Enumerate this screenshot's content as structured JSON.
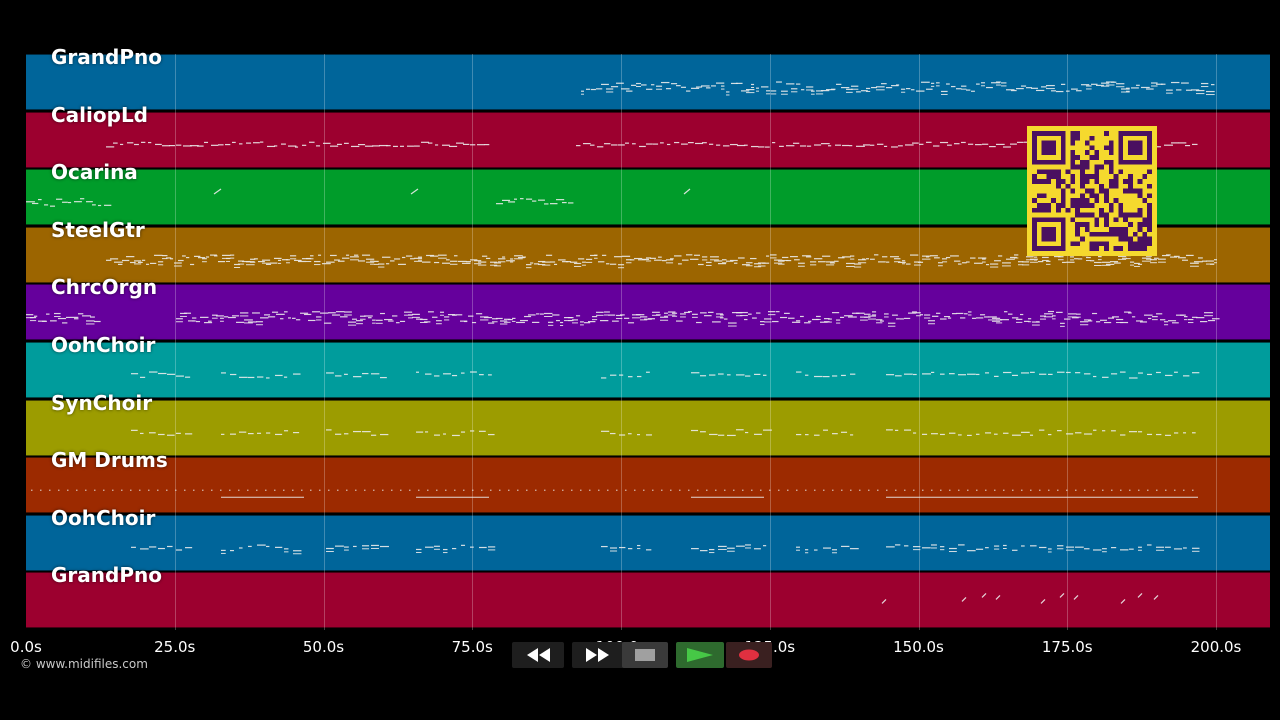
{
  "tracks": [
    {
      "name": "GrandPno",
      "color": "#00659a"
    },
    {
      "name": "CaliopLd",
      "color": "#9c002f"
    },
    {
      "name": "Ocarina",
      "color": "#009c2a"
    },
    {
      "name": "SteelGtr",
      "color": "#9c6500"
    },
    {
      "name": "ChrcOrgn",
      "color": "#65009c"
    },
    {
      "name": "OohChoir",
      "color": "#009c9c"
    },
    {
      "name": "SynChoir",
      "color": "#9c9c00"
    },
    {
      "name": "GM Drums",
      "color": "#9c2a00"
    },
    {
      "name": "OohChoir",
      "color": "#00659a"
    },
    {
      "name": "GrandPno",
      "color": "#9c002f"
    }
  ],
  "timeline": {
    "ticks": [
      "0.0s",
      "25.0s",
      "50.0s",
      "75.0s",
      "100.0s",
      "125.0s",
      "150.0s",
      "175.0s",
      "200.0s"
    ],
    "tick_seconds": [
      0,
      25,
      50,
      75,
      100,
      125,
      150,
      175,
      200
    ],
    "max_seconds": 209
  },
  "copyright": "© www.midifiles.com",
  "transport": {
    "rewind_icon": "rewind-icon",
    "fast_forward_icon": "fast-forward-icon",
    "stop_icon": "stop-icon",
    "play_icon": "play-icon",
    "record_icon": "record-icon",
    "play_color": "#46c846",
    "record_color": "#e03040"
  },
  "qr_code": {
    "color": "#f5d92e",
    "module_color": "#4a1060"
  }
}
